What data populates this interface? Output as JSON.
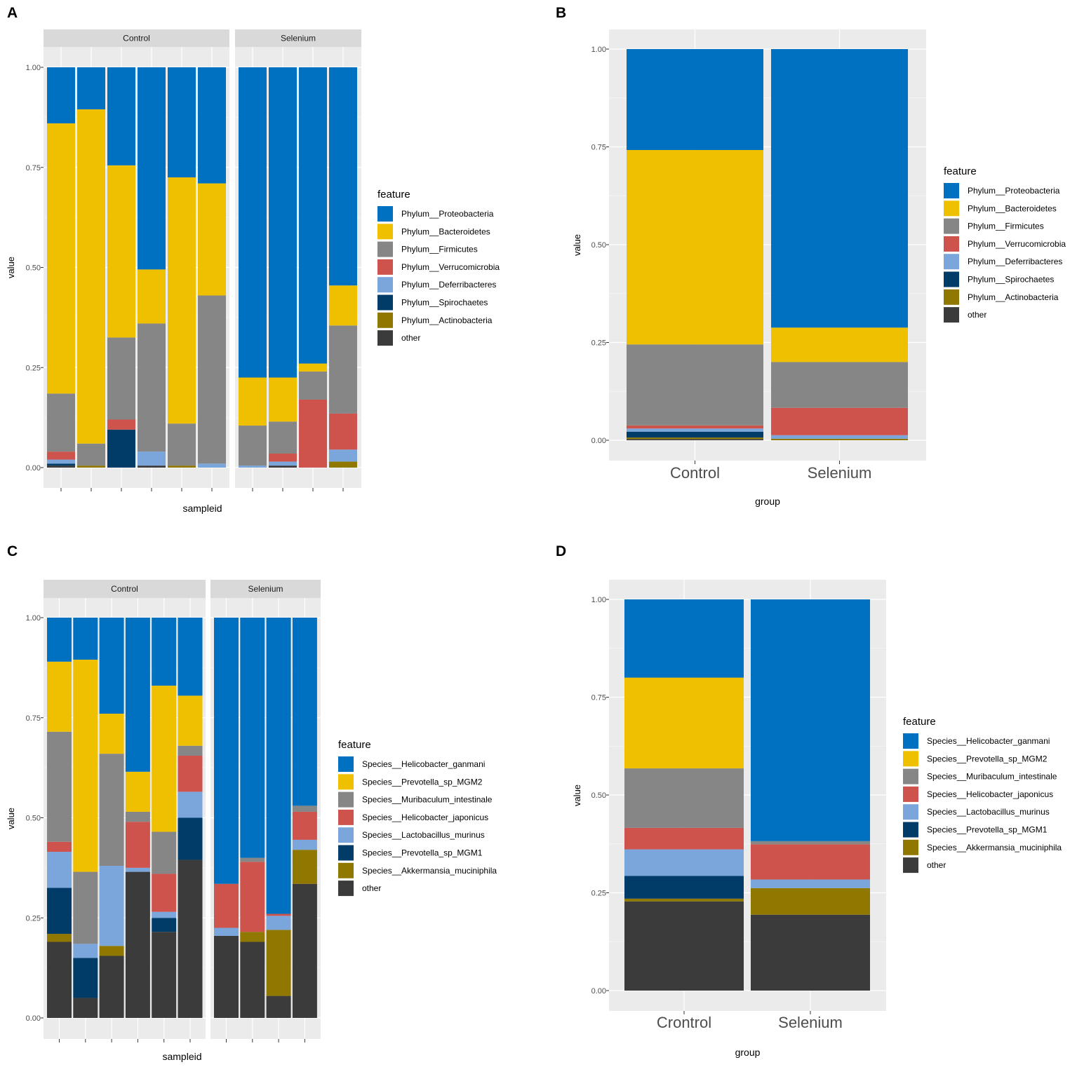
{
  "chart_data": [
    {
      "panel_label": "A",
      "type": "bar",
      "stacked": true,
      "facets": [
        "Control",
        "Selenium"
      ],
      "xlabel": "sampleid",
      "ylabel": "value",
      "ylim": [
        0,
        1
      ],
      "yticks": [
        "0.00",
        "0.25",
        "0.50",
        "0.75",
        "1.00"
      ],
      "legend_title": "feature",
      "legend": [
        "Phylum__Proteobacteria",
        "Phylum__Bacteroidetes",
        "Phylum__Firmicutes",
        "Phylum__Verrucomicrobia",
        "Phylum__Deferribacteres",
        "Phylum__Spirochaetes",
        "Phylum__Actinobacteria",
        "other"
      ],
      "colors": [
        "#0070c0",
        "#efc000",
        "#868686",
        "#cd534c",
        "#7aa6dc",
        "#003c67",
        "#8f7700",
        "#3b3b3b"
      ],
      "samples": [
        {
          "facet": "Control",
          "values": [
            0.14,
            0.675,
            0.145,
            0.02,
            0.01,
            0.005,
            0.0,
            0.005
          ]
        },
        {
          "facet": "Control",
          "values": [
            0.105,
            0.835,
            0.055,
            0.0,
            0.0,
            0.0,
            0.005,
            0.0
          ]
        },
        {
          "facet": "Control",
          "values": [
            0.245,
            0.43,
            0.205,
            0.025,
            0.0,
            0.095,
            0.0,
            0.0
          ]
        },
        {
          "facet": "Control",
          "values": [
            0.505,
            0.135,
            0.32,
            0.0,
            0.035,
            0.0,
            0.0,
            0.005
          ]
        },
        {
          "facet": "Control",
          "values": [
            0.275,
            0.615,
            0.105,
            0.0,
            0.0,
            0.0,
            0.005,
            0.0
          ]
        },
        {
          "facet": "Control",
          "values": [
            0.29,
            0.28,
            0.42,
            0.0,
            0.01,
            0.0,
            0.0,
            0.0
          ]
        },
        {
          "facet": "Selenium",
          "values": [
            0.775,
            0.12,
            0.1,
            0.0,
            0.005,
            0.0,
            0.0,
            0.0
          ]
        },
        {
          "facet": "Selenium",
          "values": [
            0.775,
            0.11,
            0.08,
            0.02,
            0.01,
            0.0,
            0.0,
            0.005
          ]
        },
        {
          "facet": "Selenium",
          "values": [
            0.74,
            0.02,
            0.07,
            0.17,
            0.0,
            0.0,
            0.0,
            0.0
          ]
        },
        {
          "facet": "Selenium",
          "values": [
            0.545,
            0.1,
            0.22,
            0.09,
            0.03,
            0.0,
            0.015,
            0.0
          ]
        }
      ]
    },
    {
      "panel_label": "B",
      "type": "bar",
      "stacked": true,
      "categories": [
        "Control",
        "Selenium"
      ],
      "xlabel": "group",
      "ylabel": "value",
      "ylim": [
        0,
        1
      ],
      "yticks": [
        "0.00",
        "0.25",
        "0.50",
        "0.75",
        "1.00"
      ],
      "legend_title": "feature",
      "legend": [
        "Phylum__Proteobacteria",
        "Phylum__Bacteroidetes",
        "Phylum__Firmicutes",
        "Phylum__Verrucomicrobia",
        "Phylum__Deferribacteres",
        "Phylum__Spirochaetes",
        "Phylum__Actinobacteria",
        "other"
      ],
      "colors": [
        "#0070c0",
        "#efc000",
        "#868686",
        "#cd534c",
        "#7aa6dc",
        "#003c67",
        "#8f7700",
        "#3b3b3b"
      ],
      "samples": [
        {
          "values": [
            0.258,
            0.497,
            0.207,
            0.008,
            0.008,
            0.015,
            0.004,
            0.003
          ]
        },
        {
          "values": [
            0.712,
            0.088,
            0.117,
            0.07,
            0.009,
            0.0,
            0.004,
            0.0
          ]
        }
      ]
    },
    {
      "panel_label": "C",
      "type": "bar",
      "stacked": true,
      "facets": [
        "Control",
        "Selenium"
      ],
      "xlabel": "sampleid",
      "ylabel": "value",
      "ylim": [
        0,
        1
      ],
      "yticks": [
        "0.00",
        "0.25",
        "0.50",
        "0.75",
        "1.00"
      ],
      "legend_title": "feature",
      "legend": [
        "Species__Helicobacter_ganmani",
        "Species__Prevotella_sp_MGM2",
        "Species__Muribaculum_intestinale",
        "Species__Helicobacter_japonicus",
        "Species__Lactobacillus_murinus",
        "Species__Prevotella_sp_MGM1",
        "Species__Akkermansia_muciniphila",
        "other"
      ],
      "colors": [
        "#0070c0",
        "#efc000",
        "#868686",
        "#cd534c",
        "#7aa6dc",
        "#003c67",
        "#8f7700",
        "#3b3b3b"
      ],
      "samples": [
        {
          "facet": "Control",
          "values": [
            0.11,
            0.175,
            0.275,
            0.025,
            0.09,
            0.115,
            0.02,
            0.19
          ]
        },
        {
          "facet": "Control",
          "values": [
            0.105,
            0.53,
            0.18,
            0.0,
            0.035,
            0.1,
            0.0,
            0.05
          ]
        },
        {
          "facet": "Control",
          "values": [
            0.24,
            0.1,
            0.28,
            0.0,
            0.2,
            0.0,
            0.025,
            0.155
          ]
        },
        {
          "facet": "Control",
          "values": [
            0.385,
            0.1,
            0.025,
            0.115,
            0.01,
            0.0,
            0.0,
            0.365
          ]
        },
        {
          "facet": "Control",
          "values": [
            0.17,
            0.365,
            0.105,
            0.095,
            0.015,
            0.035,
            0.0,
            0.215
          ]
        },
        {
          "facet": "Control",
          "values": [
            0.195,
            0.125,
            0.025,
            0.09,
            0.065,
            0.105,
            0.0,
            0.395
          ]
        },
        {
          "facet": "Selenium",
          "values": [
            0.665,
            0.0,
            0.0,
            0.11,
            0.02,
            0.0,
            0.0,
            0.205
          ]
        },
        {
          "facet": "Selenium",
          "values": [
            0.6,
            0.0,
            0.01,
            0.175,
            0.0,
            0.0,
            0.025,
            0.19
          ]
        },
        {
          "facet": "Selenium",
          "values": [
            0.74,
            0.0,
            0.0,
            0.005,
            0.035,
            0.0,
            0.165,
            0.055
          ]
        },
        {
          "facet": "Selenium",
          "values": [
            0.47,
            0.0,
            0.015,
            0.07,
            0.025,
            0.0,
            0.085,
            0.335
          ]
        }
      ]
    },
    {
      "panel_label": "D",
      "type": "bar",
      "stacked": true,
      "categories": [
        "Crontrol",
        "Selenium"
      ],
      "xlabel": "group",
      "ylabel": "value",
      "ylim": [
        0,
        1
      ],
      "yticks": [
        "0.00",
        "0.25",
        "0.50",
        "0.75",
        "1.00"
      ],
      "legend_title": "feature",
      "legend": [
        "Species__Helicobacter_ganmani",
        "Species__Prevotella_sp_MGM2",
        "Species__Muribaculum_intestinale",
        "Species__Helicobacter_japonicus",
        "Species__Lactobacillus_murinus",
        "Species__Prevotella_sp_MGM1",
        "Species__Akkermansia_muciniphila",
        "other"
      ],
      "colors": [
        "#0070c0",
        "#efc000",
        "#868686",
        "#cd534c",
        "#7aa6dc",
        "#003c67",
        "#8f7700",
        "#3b3b3b"
      ],
      "samples": [
        {
          "values": [
            0.2,
            0.232,
            0.152,
            0.055,
            0.068,
            0.058,
            0.007,
            0.228
          ]
        },
        {
          "values": [
            0.618,
            0.0,
            0.008,
            0.09,
            0.022,
            0.0,
            0.068,
            0.194
          ]
        }
      ]
    }
  ]
}
